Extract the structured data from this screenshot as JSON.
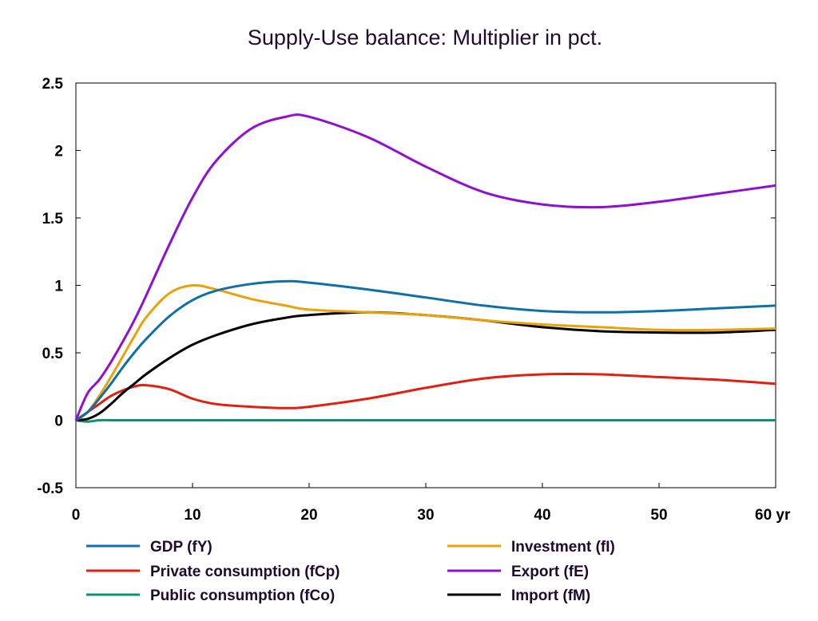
{
  "chart_data": {
    "type": "line",
    "title": "Supply-Use balance: Multiplier in pct.",
    "xlabel": "",
    "ylabel": "",
    "x_unit_label": "yr",
    "xlim": [
      0,
      60
    ],
    "ylim": [
      -0.5,
      2.5
    ],
    "x_ticks": [
      "0",
      "10",
      "20",
      "30",
      "40",
      "50",
      "60"
    ],
    "y_ticks": [
      "-0.5",
      "0",
      "0.5",
      "1",
      "1.5",
      "2",
      "2.5"
    ],
    "grid": false,
    "legend_placement": "bottom",
    "x": [
      0,
      1,
      2,
      3,
      4,
      5,
      6,
      8,
      10,
      12,
      15,
      18,
      20,
      25,
      30,
      35,
      40,
      45,
      50,
      55,
      60
    ],
    "series": [
      {
        "name": "GDP (fY)",
        "color": "#0f6fa6",
        "values": [
          0,
          0.06,
          0.16,
          0.27,
          0.39,
          0.5,
          0.6,
          0.77,
          0.89,
          0.96,
          1.01,
          1.03,
          1.02,
          0.97,
          0.91,
          0.85,
          0.81,
          0.8,
          0.81,
          0.83,
          0.85
        ]
      },
      {
        "name": "Investment (fI)",
        "color": "#e8a20c",
        "values": [
          0,
          0.06,
          0.18,
          0.32,
          0.47,
          0.62,
          0.76,
          0.94,
          1.0,
          0.97,
          0.9,
          0.85,
          0.82,
          0.8,
          0.78,
          0.74,
          0.71,
          0.69,
          0.67,
          0.67,
          0.68
        ]
      },
      {
        "name": "Private consumption (fCp)",
        "color": "#e02010",
        "values": [
          0,
          0.06,
          0.12,
          0.18,
          0.22,
          0.25,
          0.26,
          0.23,
          0.16,
          0.12,
          0.1,
          0.09,
          0.1,
          0.16,
          0.24,
          0.31,
          0.34,
          0.34,
          0.32,
          0.3,
          0.27
        ]
      },
      {
        "name": "Export (fE)",
        "color": "#9010d0",
        "values": [
          0,
          0.2,
          0.3,
          0.43,
          0.58,
          0.74,
          0.92,
          1.3,
          1.65,
          1.92,
          2.16,
          2.25,
          2.25,
          2.1,
          1.88,
          1.69,
          1.6,
          1.58,
          1.62,
          1.68,
          1.74
        ]
      },
      {
        "name": "Public consumption (fCo)",
        "color": "#119070",
        "values": [
          0,
          -0.01,
          0,
          0,
          0,
          0,
          0,
          0,
          0,
          0,
          0,
          0,
          0,
          0,
          0,
          0,
          0,
          0,
          0,
          0,
          0
        ]
      },
      {
        "name": "Import (fM)",
        "color": "#000000",
        "values": [
          0,
          0.01,
          0.05,
          0.12,
          0.2,
          0.27,
          0.34,
          0.46,
          0.56,
          0.63,
          0.71,
          0.76,
          0.78,
          0.8,
          0.78,
          0.74,
          0.69,
          0.66,
          0.65,
          0.65,
          0.67
        ]
      }
    ]
  }
}
